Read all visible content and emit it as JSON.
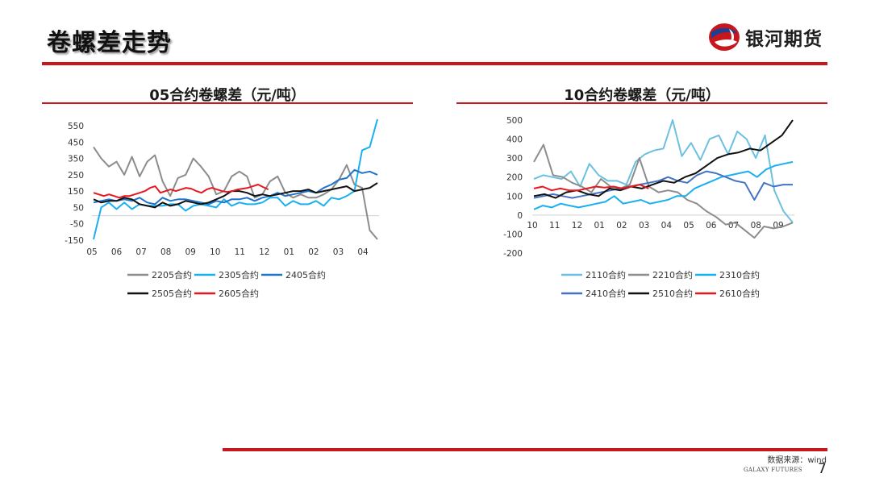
{
  "header": {
    "title": "卷螺差走势",
    "brand_name": "银河期货"
  },
  "footer": {
    "source": "数据来源：wind",
    "brand_en": "GALAXY FUTURES",
    "page_number": "7"
  },
  "colors": {
    "accent": "#c8161d"
  },
  "chart_data": [
    {
      "type": "line",
      "title": "05合约卷螺差（元/吨）",
      "x_tick_labels": [
        "05",
        "06",
        "07",
        "08",
        "09",
        "10",
        "11",
        "12",
        "01",
        "02",
        "03",
        "04"
      ],
      "y_ticks": [
        550,
        450,
        350,
        250,
        150,
        50,
        -50,
        -150
      ],
      "ylim": [
        -150,
        590
      ],
      "zero_line": true,
      "series": [
        {
          "name": "2205合约",
          "color": "#8c8c8c",
          "values": [
            420,
            350,
            300,
            330,
            250,
            360,
            240,
            330,
            370,
            210,
            120,
            230,
            250,
            350,
            300,
            240,
            130,
            150,
            240,
            270,
            240,
            110,
            130,
            210,
            240,
            140,
            110,
            130,
            110,
            110,
            130,
            160,
            220,
            310,
            190,
            170,
            -90,
            -145
          ]
        },
        {
          "name": "2305合约",
          "color": "#1ab0f0",
          "values": [
            -145,
            50,
            80,
            40,
            80,
            40,
            70,
            60,
            60,
            60,
            70,
            70,
            30,
            60,
            70,
            60,
            50,
            100,
            60,
            80,
            70,
            70,
            80,
            110,
            110,
            60,
            90,
            70,
            70,
            90,
            60,
            110,
            100,
            120,
            150,
            400,
            420,
            590
          ]
        },
        {
          "name": "2405合约",
          "color": "#1f73c9",
          "values": [
            80,
            90,
            100,
            90,
            100,
            90,
            110,
            80,
            70,
            110,
            90,
            100,
            100,
            90,
            80,
            70,
            90,
            80,
            100,
            100,
            110,
            90,
            110,
            120,
            140,
            120,
            130,
            140,
            150,
            140,
            170,
            190,
            220,
            230,
            280,
            260,
            270,
            250
          ]
        },
        {
          "name": "2505合约",
          "color": "#111111",
          "values": [
            100,
            80,
            90,
            90,
            110,
            100,
            70,
            60,
            50,
            80,
            60,
            70,
            90,
            80,
            70,
            80,
            100,
            120,
            150,
            150,
            140,
            120,
            130,
            120,
            130,
            140,
            150,
            150,
            160,
            140,
            150,
            160,
            170,
            180,
            150,
            160,
            170,
            200
          ]
        },
        {
          "name": "2605合约",
          "color": "#e8161d",
          "values": [
            140,
            130,
            120,
            130,
            120,
            110,
            120,
            120,
            130,
            140,
            150,
            170,
            180,
            140,
            150,
            160,
            150,
            160,
            170,
            165,
            150,
            140,
            160,
            170,
            160,
            150,
            145,
            150,
            160,
            165,
            170,
            180,
            190,
            175,
            160
          ]
        }
      ]
    },
    {
      "type": "line",
      "title": "10合约卷螺差（元/吨）",
      "x_tick_labels": [
        "10",
        "11",
        "12",
        "01",
        "02",
        "03",
        "04",
        "05",
        "06",
        "07",
        "08",
        "09"
      ],
      "y_ticks": [
        500,
        400,
        300,
        200,
        100,
        0,
        -100,
        -200
      ],
      "ylim": [
        -200,
        500
      ],
      "zero_line": true,
      "series": [
        {
          "name": "2110合约",
          "color": "#6cc0e0",
          "values": [
            190,
            210,
            200,
            190,
            230,
            150,
            270,
            210,
            180,
            180,
            160,
            280,
            320,
            340,
            350,
            500,
            310,
            380,
            290,
            400,
            420,
            320,
            440,
            400,
            300,
            420,
            130,
            20,
            -40
          ]
        },
        {
          "name": "2210合约",
          "color": "#8c8c8c",
          "values": [
            280,
            370,
            210,
            200,
            170,
            150,
            120,
            190,
            150,
            140,
            160,
            300,
            150,
            120,
            130,
            120,
            80,
            60,
            20,
            -10,
            -50,
            -40,
            -80,
            -120,
            -60,
            -70,
            -60,
            -40
          ]
        },
        {
          "name": "2310合约",
          "color": "#1ab0f0",
          "values": [
            30,
            50,
            40,
            60,
            50,
            40,
            50,
            60,
            70,
            100,
            60,
            70,
            80,
            60,
            70,
            80,
            100,
            100,
            140,
            160,
            180,
            200,
            210,
            220,
            230,
            200,
            240,
            260,
            270,
            280
          ]
        },
        {
          "name": "2410合约",
          "color": "#4472c4",
          "values": [
            90,
            100,
            110,
            100,
            90,
            100,
            110,
            120,
            130,
            140,
            150,
            160,
            170,
            180,
            200,
            180,
            170,
            210,
            230,
            220,
            200,
            180,
            170,
            80,
            170,
            150,
            160,
            160
          ]
        },
        {
          "name": "2510合约",
          "color": "#111111",
          "values": [
            100,
            110,
            90,
            120,
            130,
            110,
            100,
            140,
            130,
            150,
            140,
            160,
            180,
            170,
            200,
            220,
            260,
            300,
            320,
            330,
            350,
            340,
            380,
            420,
            500
          ]
        },
        {
          "name": "2610合约",
          "color": "#e8161d",
          "values": [
            140,
            150,
            130,
            140,
            130,
            130,
            140,
            150,
            145,
            150,
            140,
            150,
            160,
            140
          ]
        }
      ]
    }
  ]
}
